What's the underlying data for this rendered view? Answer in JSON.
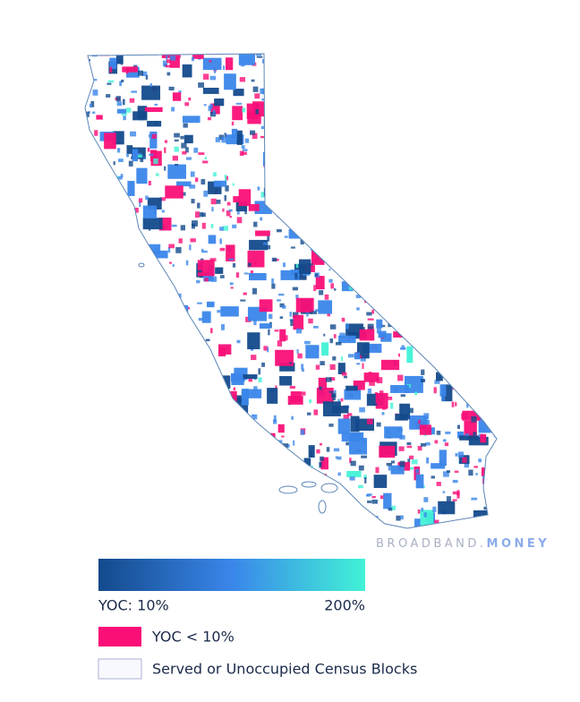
{
  "watermark": {
    "brand": "BROADBAND",
    "separator": ".",
    "suffix": "MONEY"
  },
  "legend": {
    "gradient": {
      "min_label": "YOC: 10%",
      "max_label": "200%",
      "colors": [
        "#134a8c",
        "#3a86ea",
        "#41f2d6"
      ]
    },
    "items": [
      {
        "label": "YOC < 10%",
        "color": "#fa0f78"
      },
      {
        "label": "Served or Unoccupied Census Blocks",
        "color": "#f8f9ff"
      }
    ]
  }
}
